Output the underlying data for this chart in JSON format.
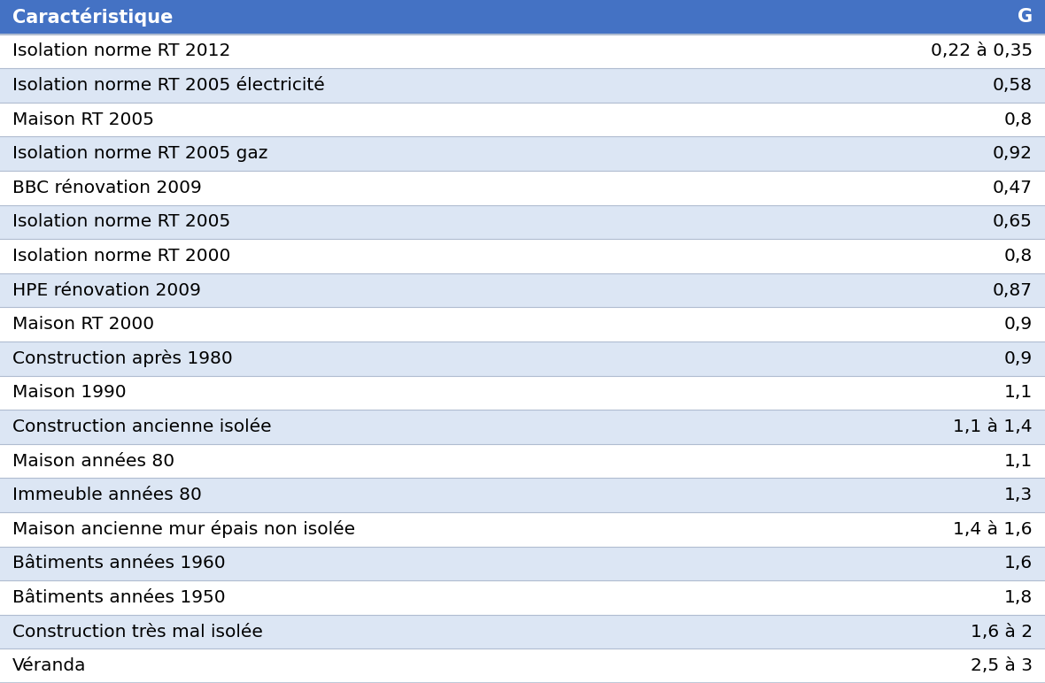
{
  "header": [
    "Caractéristique",
    "G"
  ],
  "rows": [
    [
      "Isolation norme RT 2012",
      "0,22 à 0,35"
    ],
    [
      "Isolation norme RT 2005 électricité",
      "0,58"
    ],
    [
      "Maison RT 2005",
      "0,8"
    ],
    [
      "Isolation norme RT 2005 gaz",
      "0,92"
    ],
    [
      "BBC rénovation 2009",
      "0,47"
    ],
    [
      "Isolation norme RT 2005",
      "0,65"
    ],
    [
      "Isolation norme RT 2000",
      "0,8"
    ],
    [
      "HPE rénovation 2009",
      "0,87"
    ],
    [
      "Maison RT 2000",
      "0,9"
    ],
    [
      "Construction après 1980",
      "0,9"
    ],
    [
      "Maison 1990",
      "1,1"
    ],
    [
      "Construction ancienne isolée",
      "1,1 à 1,4"
    ],
    [
      "Maison années 80",
      "1,1"
    ],
    [
      "Immeuble années 80",
      "1,3"
    ],
    [
      "Maison ancienne mur épais non isolée",
      "1,4 à 1,6"
    ],
    [
      "Bâtiments années 1960",
      "1,6"
    ],
    [
      "Bâtiments années 1950",
      "1,8"
    ],
    [
      "Construction très mal isolée",
      "1,6 à 2"
    ],
    [
      "Véranda",
      "2,5 à 3"
    ]
  ],
  "header_bg": "#4472c4",
  "header_text_color": "#ffffff",
  "row_bg_even": "#ffffff",
  "row_bg_odd": "#dce6f4",
  "border_color": "#b0bcd0",
  "text_color": "#000000",
  "font_size": 14.5,
  "header_font_size": 15
}
